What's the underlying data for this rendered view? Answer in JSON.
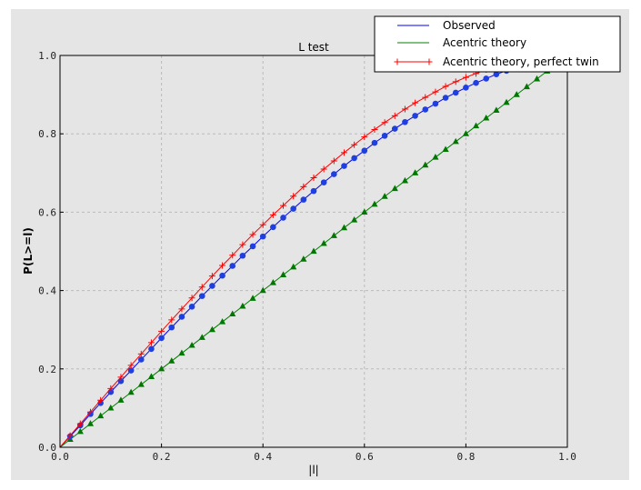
{
  "chart_data": {
    "type": "line",
    "title": "L test",
    "xlabel": "|l|",
    "ylabel": "P(L>=l)",
    "xlim": [
      0,
      1
    ],
    "ylim": [
      0,
      1
    ],
    "xticks": [
      "0.0",
      "0.2",
      "0.4",
      "0.6",
      "0.8",
      "1.0"
    ],
    "yticks": [
      "0.0",
      "0.2",
      "0.4",
      "0.6",
      "0.8",
      "1.0"
    ],
    "grid": true,
    "legend_position": "top-right",
    "x": [
      0,
      0.02,
      0.04,
      0.06,
      0.08,
      0.1,
      0.12,
      0.14,
      0.16,
      0.18,
      0.2,
      0.22,
      0.24,
      0.26,
      0.28,
      0.3,
      0.32,
      0.34,
      0.36,
      0.38,
      0.4,
      0.42,
      0.44,
      0.46,
      0.48,
      0.5,
      0.52,
      0.54,
      0.56,
      0.58,
      0.6,
      0.62,
      0.64,
      0.66,
      0.68,
      0.7,
      0.72,
      0.74,
      0.76,
      0.78,
      0.8,
      0.82,
      0.84,
      0.86,
      0.88,
      0.9,
      0.92,
      0.94,
      0.96,
      0.98,
      1.0
    ],
    "series": [
      {
        "name": "Observed",
        "color": "#0000ff",
        "marker": "circle",
        "marker_color": "#1f3fe0",
        "values": [
          0,
          0.028,
          0.056,
          0.085,
          0.113,
          0.141,
          0.169,
          0.196,
          0.224,
          0.251,
          0.279,
          0.306,
          0.333,
          0.359,
          0.386,
          0.412,
          0.438,
          0.463,
          0.489,
          0.513,
          0.538,
          0.562,
          0.586,
          0.609,
          0.632,
          0.654,
          0.676,
          0.697,
          0.718,
          0.738,
          0.757,
          0.777,
          0.795,
          0.813,
          0.83,
          0.846,
          0.862,
          0.877,
          0.892,
          0.905,
          0.918,
          0.93,
          0.941,
          0.952,
          0.961,
          0.97,
          0.978,
          0.985,
          0.991,
          0.996,
          1.0
        ]
      },
      {
        "name": "Acentric theory",
        "color": "#008000",
        "marker": "triangle",
        "marker_color": "#007700",
        "values": [
          0,
          0.02,
          0.04,
          0.06,
          0.08,
          0.1,
          0.12,
          0.14,
          0.16,
          0.18,
          0.2,
          0.22,
          0.24,
          0.26,
          0.28,
          0.3,
          0.32,
          0.34,
          0.36,
          0.38,
          0.4,
          0.42,
          0.44,
          0.46,
          0.48,
          0.5,
          0.52,
          0.54,
          0.56,
          0.58,
          0.6,
          0.62,
          0.64,
          0.66,
          0.68,
          0.7,
          0.72,
          0.74,
          0.76,
          0.78,
          0.8,
          0.82,
          0.84,
          0.86,
          0.88,
          0.9,
          0.92,
          0.94,
          0.96,
          0.98,
          1.0
        ]
      },
      {
        "name": "Acentric theory, perfect twin",
        "color": "#ff0000",
        "marker": "plus",
        "marker_color": "#ff0000",
        "values": [
          0,
          0.03,
          0.06,
          0.09,
          0.12,
          0.15,
          0.179,
          0.209,
          0.238,
          0.267,
          0.296,
          0.325,
          0.353,
          0.381,
          0.409,
          0.437,
          0.464,
          0.49,
          0.517,
          0.543,
          0.568,
          0.593,
          0.617,
          0.641,
          0.665,
          0.688,
          0.71,
          0.731,
          0.752,
          0.772,
          0.792,
          0.811,
          0.829,
          0.846,
          0.863,
          0.879,
          0.893,
          0.907,
          0.921,
          0.933,
          0.944,
          0.954,
          0.964,
          0.972,
          0.979,
          0.986,
          0.991,
          0.995,
          0.998,
          0.999,
          1.0
        ]
      }
    ]
  }
}
